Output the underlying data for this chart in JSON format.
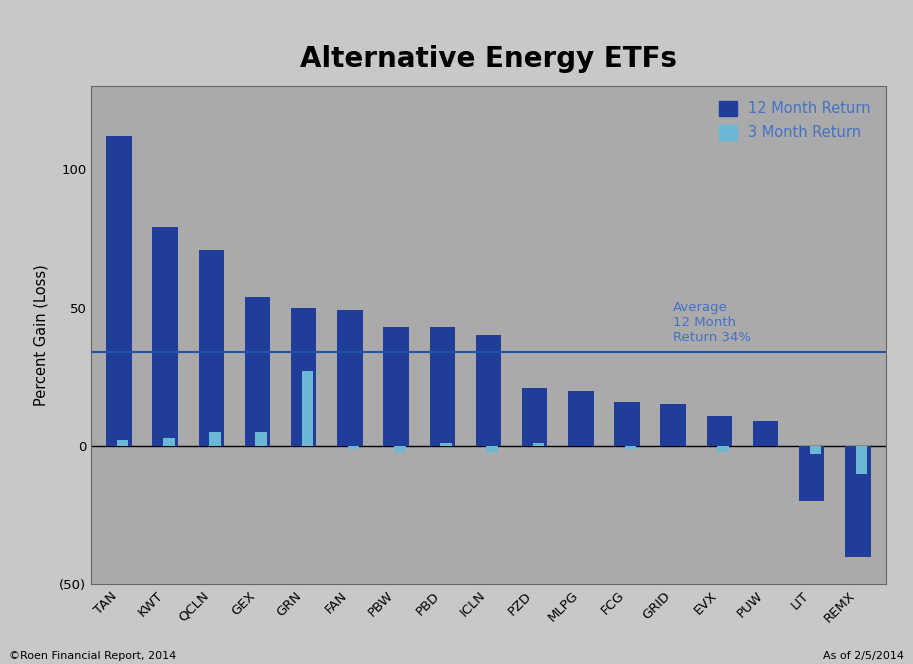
{
  "title": "Alternative Energy ETFs",
  "ylabel": "Percent Gain (Loss)",
  "categories": [
    "TAN",
    "KWT",
    "QCLN",
    "GEX",
    "GRN",
    "FAN",
    "PBW",
    "PBD",
    "ICLN",
    "PZD",
    "MLPG",
    "FCG",
    "GRID",
    "EVX",
    "PUW",
    "LIT",
    "REMX"
  ],
  "return_12m": [
    112,
    79,
    71,
    54,
    50,
    49,
    43,
    43,
    40,
    21,
    20,
    16,
    15,
    11,
    9,
    -20,
    -40
  ],
  "return_3m": [
    2,
    3,
    5,
    5,
    27,
    -1,
    -2,
    1,
    -2,
    1,
    0,
    -1,
    0,
    -2,
    0,
    -3,
    -10
  ],
  "average_line": 34,
  "color_12m": "#1F3D99",
  "color_3m": "#6BB8D4",
  "avg_line_color": "#2255AA",
  "bg_color": "#AAAAAA",
  "outer_bg": "#C8C8C8",
  "chart_border_color": "#888888",
  "ylim": [
    -50,
    130
  ],
  "yticks": [
    -50,
    0,
    50,
    100
  ],
  "ytick_labels": [
    "(50)",
    "0",
    "50",
    "100"
  ],
  "avg_label": "Average\n12 Month\nReturn 34%",
  "avg_label_color": "#4472C4",
  "footer_left": "©Roen Financial Report, 2014",
  "footer_right": "As of 2/5/2014",
  "legend_12m": "12 Month Return",
  "legend_3m": "3 Month Return"
}
